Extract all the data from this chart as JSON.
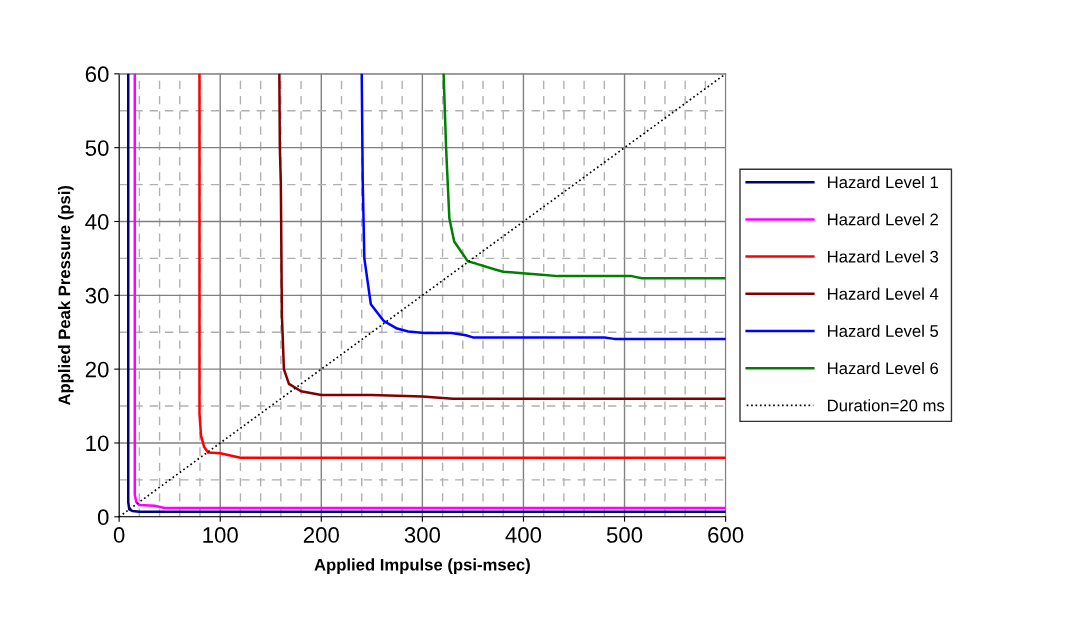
{
  "chart_data": {
    "type": "line",
    "xlabel": "Applied Impulse (psi-msec)",
    "ylabel": "Applied Peak Pressure (psi)",
    "xlim": [
      0,
      600
    ],
    "ylim": [
      0,
      60
    ],
    "xticks": [
      0,
      100,
      200,
      300,
      400,
      500,
      600
    ],
    "yticks": [
      0,
      10,
      20,
      30,
      40,
      50,
      60
    ],
    "grid": true,
    "legend": "right",
    "marker": "none",
    "series": [
      {
        "name": "Hazard Level 1",
        "color": "#000080",
        "x": [
          9,
          9,
          10,
          13,
          20,
          600
        ],
        "values": [
          60,
          2,
          1,
          0.8,
          0.7,
          0.7
        ]
      },
      {
        "name": "Hazard Level 2",
        "color": "#ff00ff",
        "x": [
          15.5,
          15.5,
          17,
          20,
          35,
          45,
          600
        ],
        "values": [
          60,
          3,
          2,
          1.6,
          1.5,
          1.2,
          1.2
        ]
      },
      {
        "name": "Hazard Level 3",
        "color": "#ff0000",
        "x": [
          79.5,
          79.5,
          81,
          84,
          88,
          100,
          110,
          120,
          600
        ],
        "values": [
          60,
          14,
          11,
          9.5,
          8.7,
          8.6,
          8.3,
          8.0,
          8.0
        ]
      },
      {
        "name": "Hazard Level 4",
        "color": "#800000",
        "x": [
          158.5,
          159,
          160,
          161,
          163,
          168,
          180,
          200,
          250,
          300,
          330,
          600
        ],
        "values": [
          60,
          50,
          45,
          27.4,
          20,
          18,
          17,
          16.5,
          16.5,
          16.3,
          16,
          16
        ]
      },
      {
        "name": "Hazard Level 5",
        "color": "#0000ff",
        "x": [
          240,
          241,
          242.6,
          249,
          262,
          275,
          286,
          302,
          329,
          343,
          350,
          480,
          490,
          600
        ],
        "values": [
          60,
          45.4,
          35,
          28.8,
          26.5,
          25.5,
          25.1,
          24.9,
          24.9,
          24.6,
          24.3,
          24.3,
          24.1,
          24.1
        ]
      },
      {
        "name": "Hazard Level 6",
        "color": "#008000",
        "x": [
          321,
          323.5,
          326.7,
          331.5,
          345,
          353,
          372,
          380,
          399,
          418,
          434,
          507,
          517,
          600
        ],
        "values": [
          60,
          49.9,
          40.4,
          37.3,
          34.6,
          34.3,
          33.5,
          33.2,
          33.0,
          32.8,
          32.6,
          32.6,
          32.3,
          32.3
        ]
      },
      {
        "name": "Duration=20 ms",
        "color": "#000000",
        "line_style": "dotted",
        "x": [
          0,
          600
        ],
        "values": [
          0,
          60
        ]
      }
    ]
  }
}
